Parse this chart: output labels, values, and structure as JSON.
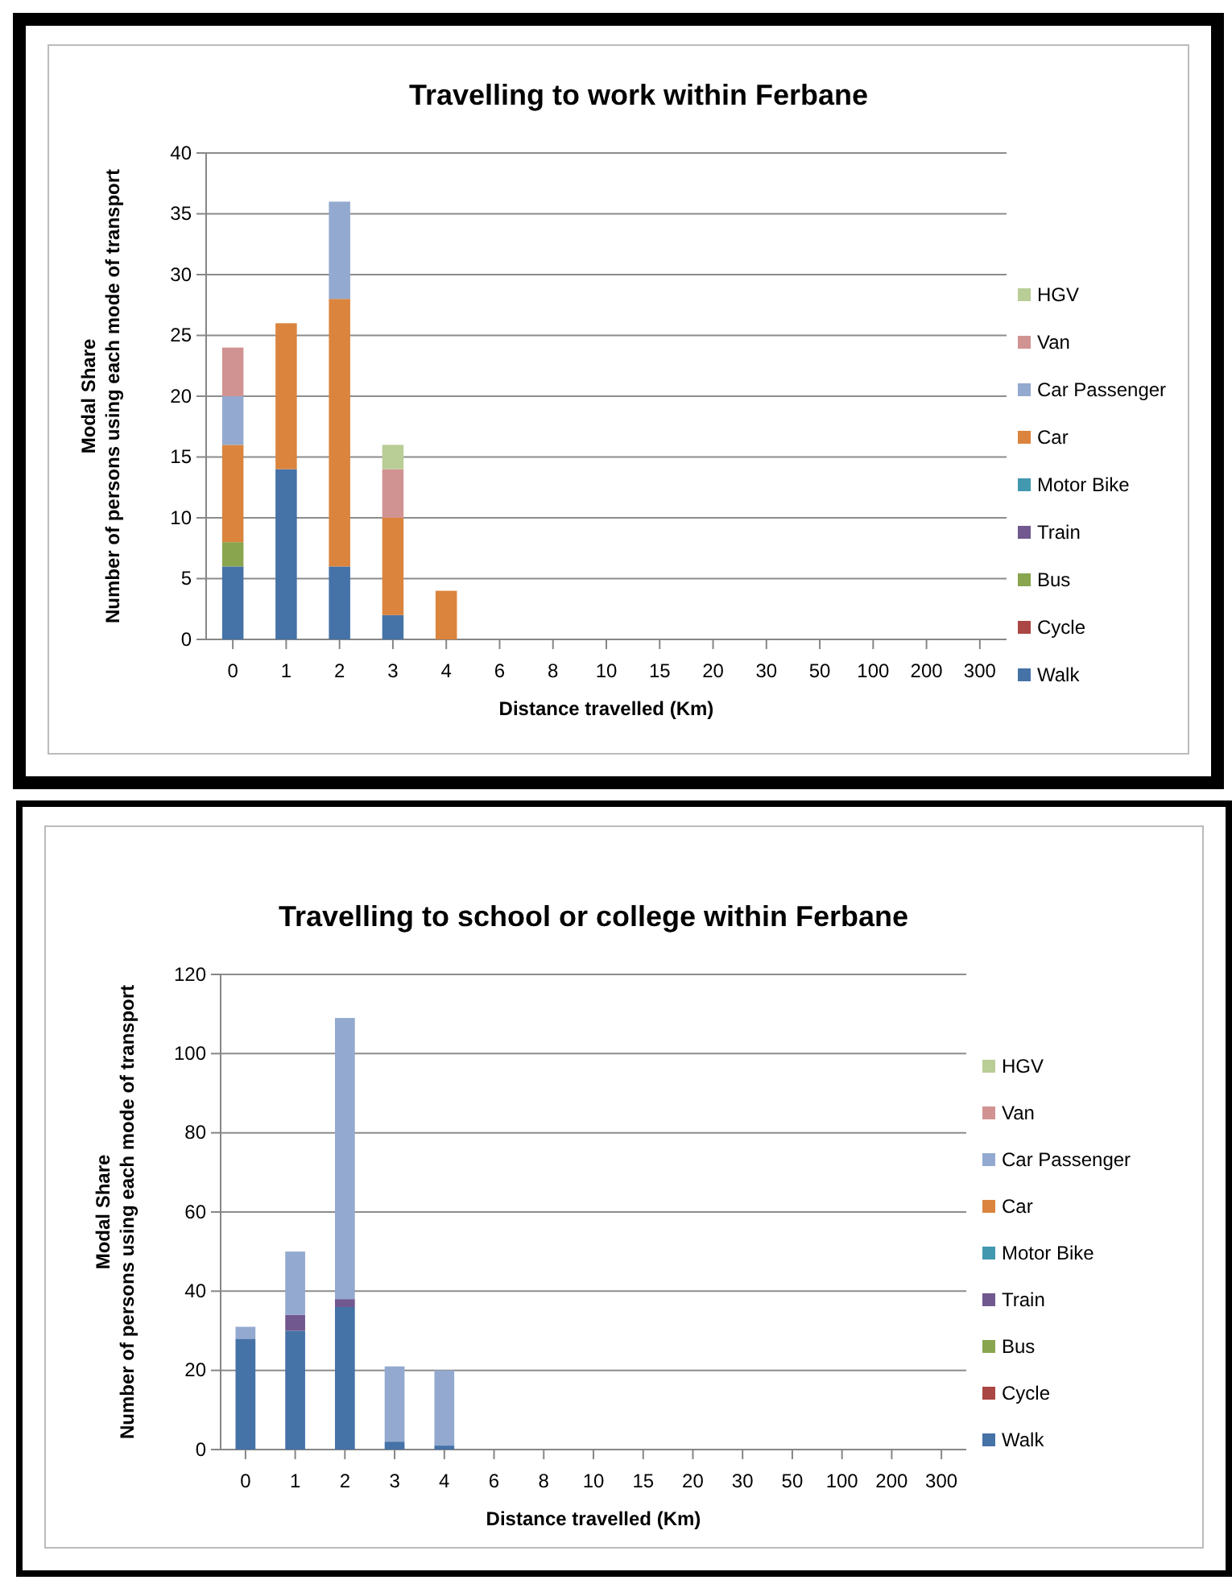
{
  "chart_data": [
    {
      "type": "bar",
      "title": "Travelling to work within Ferbane",
      "xlabel": "Distance travelled (Km)",
      "ylabel": "Modal Share\nNumber of persons using each mode of transport",
      "categories": [
        "0",
        "1",
        "2",
        "3",
        "4",
        "6",
        "8",
        "10",
        "15",
        "20",
        "30",
        "50",
        "100",
        "200",
        "300"
      ],
      "stacked": true,
      "ylim": [
        0,
        40
      ],
      "yticks": [
        0,
        5,
        10,
        15,
        20,
        25,
        30,
        35,
        40
      ],
      "grid": "y",
      "legend": "right",
      "series": [
        {
          "name": "Walk",
          "color": "#4572a7",
          "values": [
            6,
            14,
            6,
            2,
            0,
            0,
            0,
            0,
            0,
            0,
            0,
            0,
            0,
            0,
            0
          ]
        },
        {
          "name": "Cycle",
          "color": "#aa4643",
          "values": [
            0,
            0,
            0,
            0,
            0,
            0,
            0,
            0,
            0,
            0,
            0,
            0,
            0,
            0,
            0
          ]
        },
        {
          "name": "Bus",
          "color": "#89a54e",
          "values": [
            2,
            0,
            0,
            0,
            0,
            0,
            0,
            0,
            0,
            0,
            0,
            0,
            0,
            0,
            0
          ]
        },
        {
          "name": "Train",
          "color": "#71588f",
          "values": [
            0,
            0,
            0,
            0,
            0,
            0,
            0,
            0,
            0,
            0,
            0,
            0,
            0,
            0,
            0
          ]
        },
        {
          "name": "Motor Bike",
          "color": "#4198af",
          "values": [
            0,
            0,
            0,
            0,
            0,
            0,
            0,
            0,
            0,
            0,
            0,
            0,
            0,
            0,
            0
          ]
        },
        {
          "name": "Car",
          "color": "#db843d",
          "values": [
            8,
            12,
            22,
            8,
            4,
            0,
            0,
            0,
            0,
            0,
            0,
            0,
            0,
            0,
            0
          ]
        },
        {
          "name": "Car Passenger",
          "color": "#93a9cf",
          "values": [
            4,
            0,
            8,
            0,
            0,
            0,
            0,
            0,
            0,
            0,
            0,
            0,
            0,
            0,
            0
          ]
        },
        {
          "name": "Van",
          "color": "#d19392",
          "values": [
            4,
            0,
            0,
            4,
            0,
            0,
            0,
            0,
            0,
            0,
            0,
            0,
            0,
            0,
            0
          ]
        },
        {
          "name": "HGV",
          "color": "#b9cd96",
          "values": [
            0,
            0,
            0,
            2,
            0,
            0,
            0,
            0,
            0,
            0,
            0,
            0,
            0,
            0,
            0
          ]
        }
      ]
    },
    {
      "type": "bar",
      "title": "Travelling to school or college within Ferbane",
      "xlabel": "Distance travelled (Km)",
      "ylabel": "Modal Share\nNumber of persons using each mode of transport",
      "categories": [
        "0",
        "1",
        "2",
        "3",
        "4",
        "6",
        "8",
        "10",
        "15",
        "20",
        "30",
        "50",
        "100",
        "200",
        "300"
      ],
      "stacked": true,
      "ylim": [
        0,
        120
      ],
      "yticks": [
        0,
        20,
        40,
        60,
        80,
        100,
        120
      ],
      "grid": "y",
      "legend": "right",
      "series": [
        {
          "name": "Walk",
          "color": "#4572a7",
          "values": [
            28,
            30,
            36,
            2,
            1,
            0,
            0,
            0,
            0,
            0,
            0,
            0,
            0,
            0,
            0
          ]
        },
        {
          "name": "Cycle",
          "color": "#aa4643",
          "values": [
            0,
            0,
            0,
            0,
            0,
            0,
            0,
            0,
            0,
            0,
            0,
            0,
            0,
            0,
            0
          ]
        },
        {
          "name": "Bus",
          "color": "#89a54e",
          "values": [
            0,
            0,
            0,
            0,
            0,
            0,
            0,
            0,
            0,
            0,
            0,
            0,
            0,
            0,
            0
          ]
        },
        {
          "name": "Train",
          "color": "#71588f",
          "values": [
            0,
            4,
            2,
            0,
            0,
            0,
            0,
            0,
            0,
            0,
            0,
            0,
            0,
            0,
            0
          ]
        },
        {
          "name": "Motor Bike",
          "color": "#4198af",
          "values": [
            0,
            0,
            0,
            0,
            0,
            0,
            0,
            0,
            0,
            0,
            0,
            0,
            0,
            0,
            0
          ]
        },
        {
          "name": "Car",
          "color": "#db843d",
          "values": [
            0,
            0,
            0,
            0,
            0,
            0,
            0,
            0,
            0,
            0,
            0,
            0,
            0,
            0,
            0
          ]
        },
        {
          "name": "Car Passenger",
          "color": "#93a9cf",
          "values": [
            3,
            16,
            71,
            19,
            19,
            0,
            0,
            0,
            0,
            0,
            0,
            0,
            0,
            0,
            0
          ]
        },
        {
          "name": "Van",
          "color": "#d19392",
          "values": [
            0,
            0,
            0,
            0,
            0,
            0,
            0,
            0,
            0,
            0,
            0,
            0,
            0,
            0,
            0
          ]
        },
        {
          "name": "HGV",
          "color": "#b9cd96",
          "values": [
            0,
            0,
            0,
            0,
            0,
            0,
            0,
            0,
            0,
            0,
            0,
            0,
            0,
            0,
            0
          ]
        }
      ]
    }
  ]
}
